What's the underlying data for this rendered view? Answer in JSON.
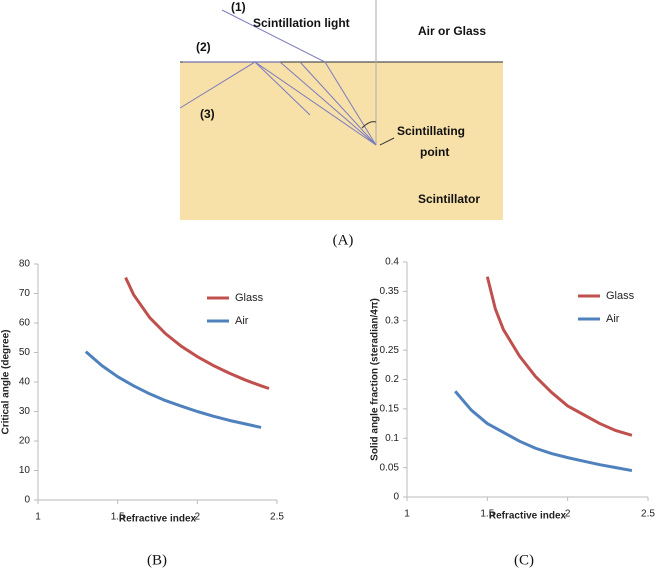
{
  "diagram": {
    "labels": {
      "ray1": "(1)",
      "light": "Scintillation light",
      "medium": "Air or Glass",
      "ray2": "(2)",
      "ray3": "(3)",
      "point1": "Scintillating",
      "point2": "point",
      "scintillator": "Scintillator"
    },
    "caption": "(A)"
  },
  "chart_data": [
    {
      "type": "line",
      "caption": "(B)",
      "ylabel": "Critical angle (degree)",
      "xlabel": "Refractive index",
      "xlim": [
        1,
        2.5
      ],
      "xticks": [
        1,
        1.5,
        2,
        2.5
      ],
      "ylim": [
        0,
        80
      ],
      "yticks": [
        0,
        10,
        20,
        30,
        40,
        50,
        60,
        70,
        80
      ],
      "legend": "upper right",
      "series": [
        {
          "name": "Glass",
          "color": "#c0504d",
          "x": [
            1.55,
            1.6,
            1.7,
            1.8,
            1.9,
            2.0,
            2.1,
            2.2,
            2.3,
            2.4,
            2.45
          ],
          "values": [
            75.4,
            69.6,
            61.9,
            56.4,
            52.1,
            48.6,
            45.6,
            43.0,
            40.7,
            38.7,
            37.8
          ]
        },
        {
          "name": "Air",
          "color": "#4f81bd",
          "x": [
            1.3,
            1.4,
            1.5,
            1.6,
            1.7,
            1.8,
            1.9,
            2.0,
            2.1,
            2.2,
            2.3,
            2.4
          ],
          "values": [
            50.3,
            45.6,
            41.8,
            38.7,
            36.0,
            33.7,
            31.8,
            30.0,
            28.4,
            27.0,
            25.8,
            24.6
          ]
        }
      ]
    },
    {
      "type": "line",
      "caption": "(C)",
      "ylabel": "Solid angle fraction (steradian/4π)",
      "xlabel": "Refractive index",
      "xlim": [
        1,
        2.5
      ],
      "xticks": [
        1,
        1.5,
        2,
        2.5
      ],
      "ylim": [
        0,
        0.4
      ],
      "yticks": [
        0,
        0.05,
        0.1,
        0.15,
        0.2,
        0.25,
        0.3,
        0.35,
        0.4
      ],
      "legend": "upper right",
      "series": [
        {
          "name": "Glass",
          "color": "#c0504d",
          "x": [
            1.5,
            1.55,
            1.6,
            1.7,
            1.8,
            1.9,
            2.0,
            2.1,
            2.2,
            2.3,
            2.4
          ],
          "values": [
            0.375,
            0.32,
            0.285,
            0.24,
            0.205,
            0.178,
            0.155,
            0.14,
            0.125,
            0.113,
            0.105
          ]
        },
        {
          "name": "Air",
          "color": "#4f81bd",
          "x": [
            1.3,
            1.4,
            1.5,
            1.6,
            1.7,
            1.8,
            1.9,
            2.0,
            2.1,
            2.2,
            2.3,
            2.4
          ],
          "values": [
            0.18,
            0.148,
            0.125,
            0.11,
            0.095,
            0.083,
            0.074,
            0.067,
            0.061,
            0.055,
            0.05,
            0.045
          ]
        }
      ]
    }
  ]
}
